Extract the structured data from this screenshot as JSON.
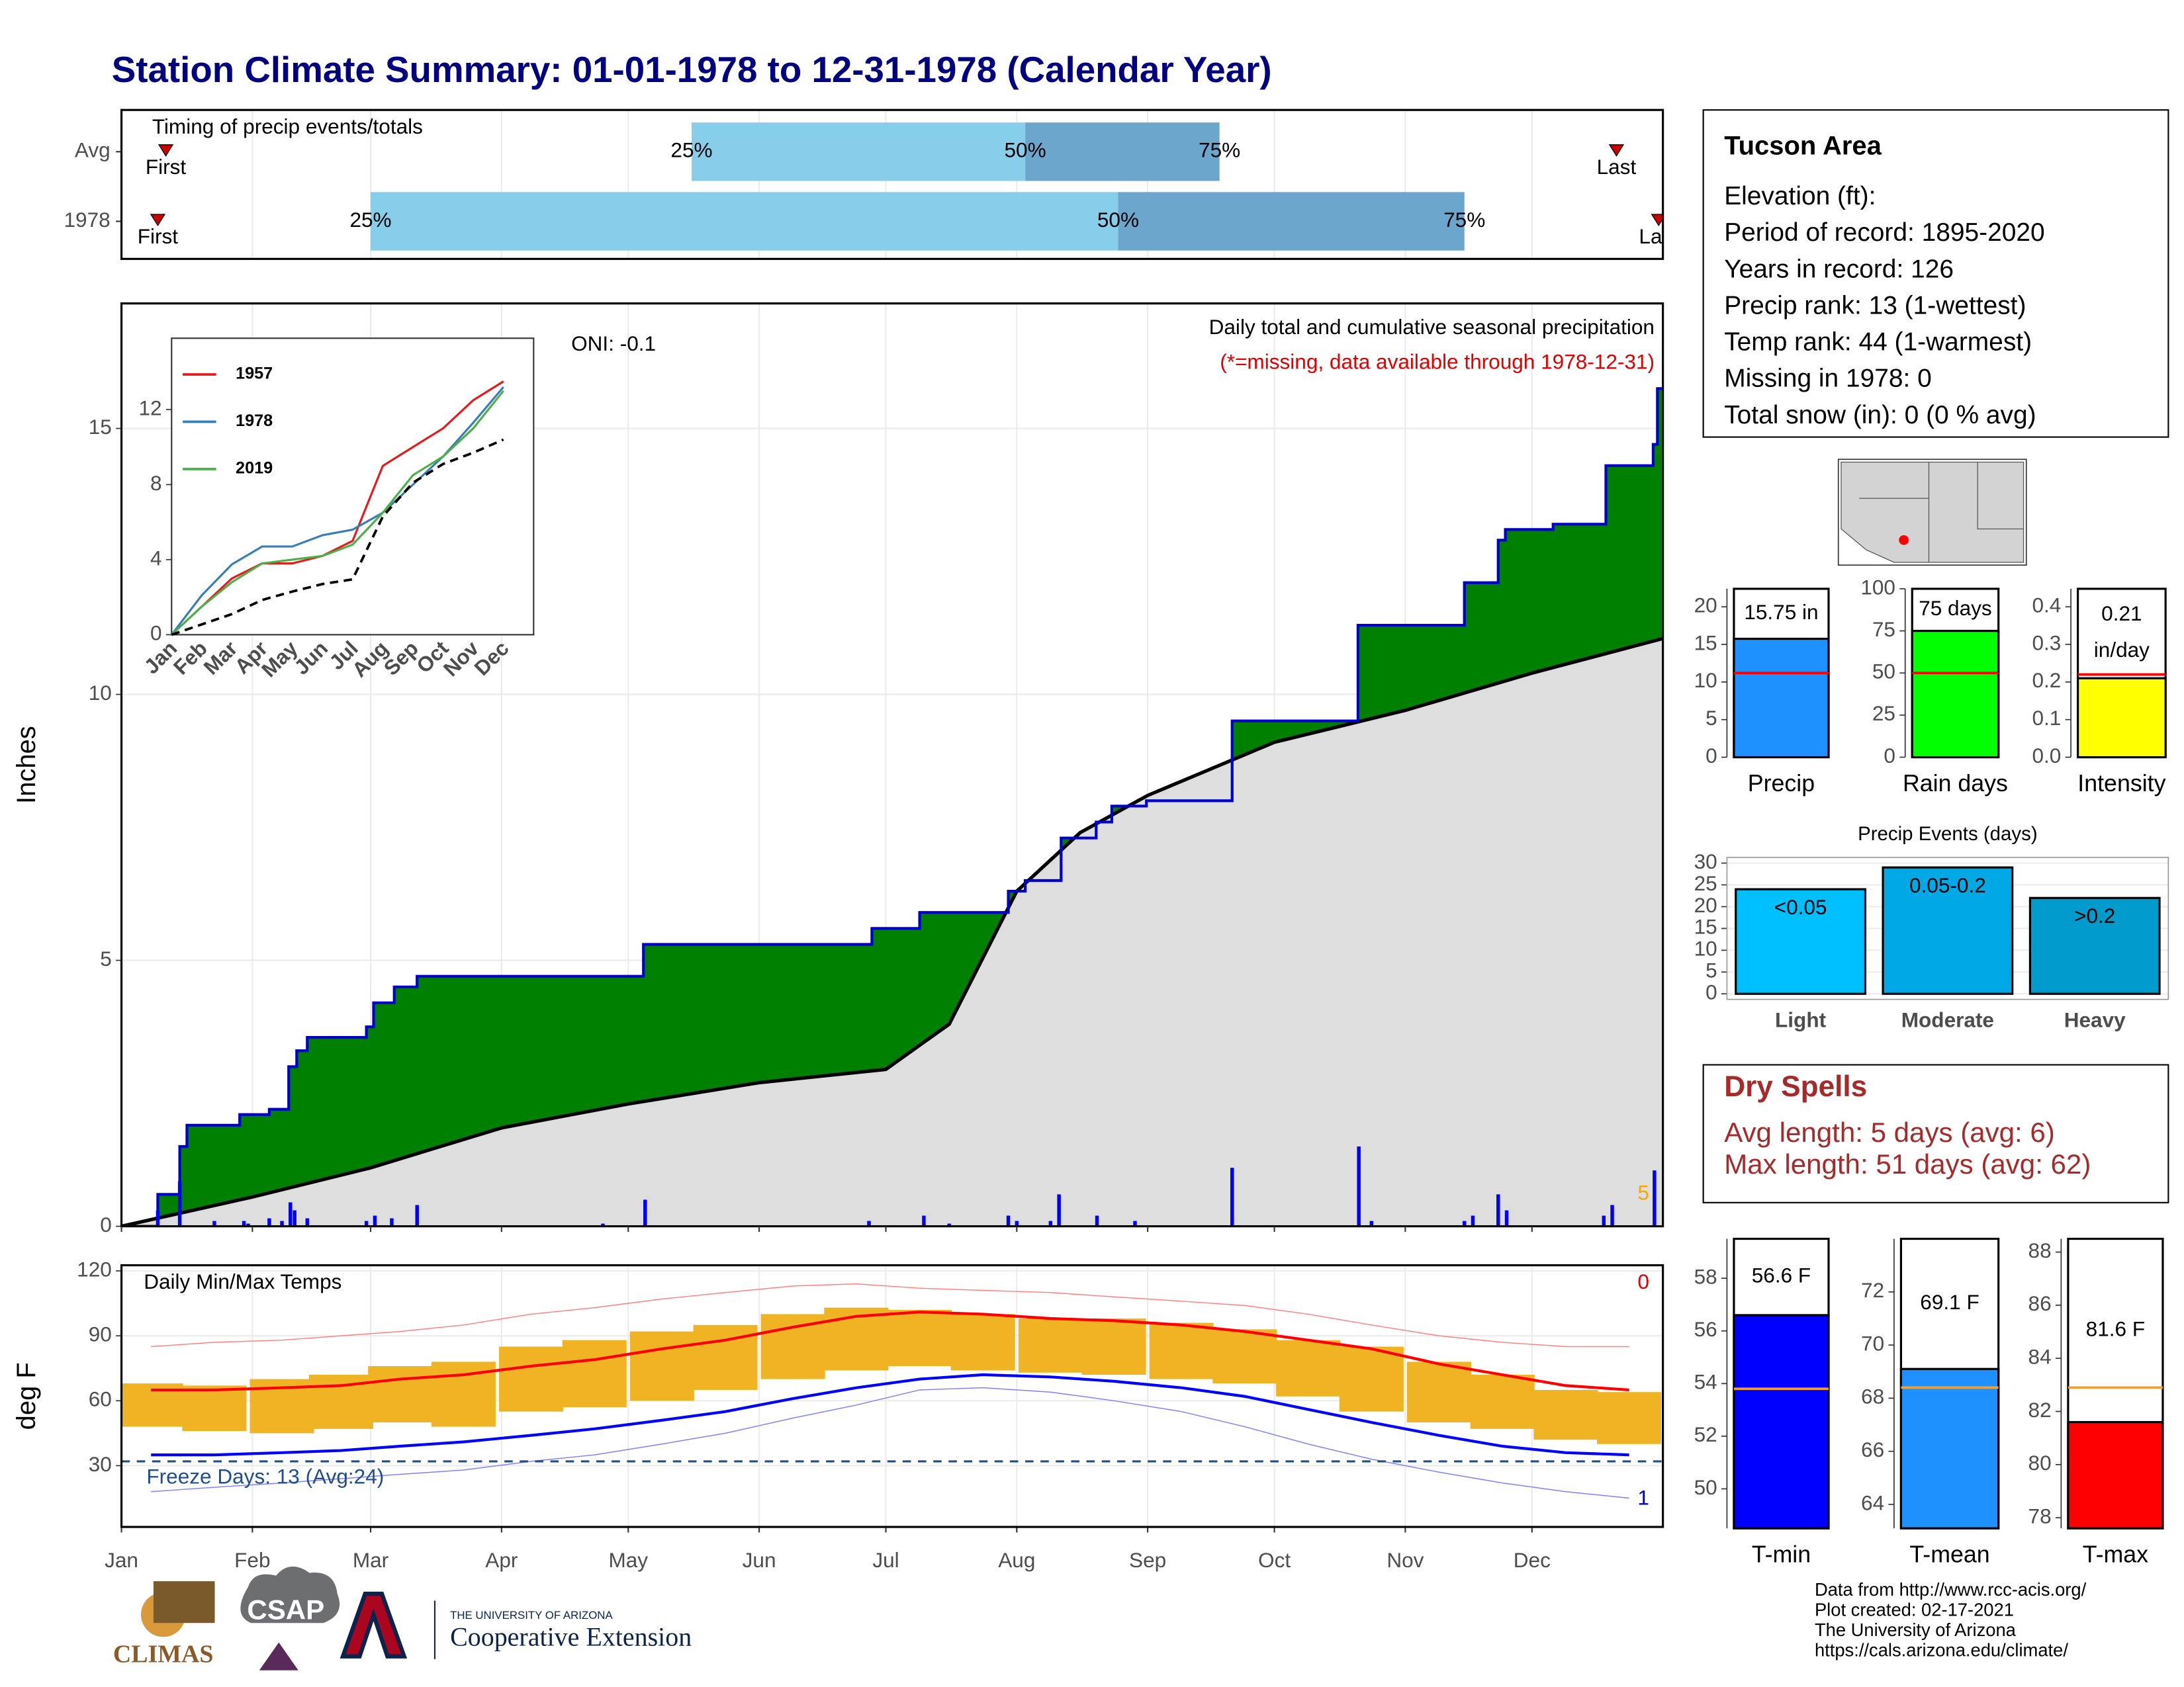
{
  "title": "Station Climate Summary: 01-01-1978 to 12-31-1978 (Calendar Year)",
  "chart_data": [
    {
      "type": "timing",
      "title": "Timing of precip events/totals",
      "xlim": [
        0,
        365
      ],
      "categories": [
        "Avg",
        "1978"
      ],
      "rows": [
        {
          "first": 10.5,
          "q25": 135,
          "q50": 214,
          "q75": 260,
          "last": 354
        },
        {
          "first": 8.6,
          "q25": 59,
          "q50": 236,
          "q75": 318,
          "last": 364
        }
      ],
      "marker_labels": {
        "first": "First",
        "q25": "25%",
        "q50": "50%",
        "q75": "75%",
        "last": "Last"
      },
      "colors": [
        "#87ceeb",
        "#6ca6cd"
      ],
      "marker_color": "#cc0000",
      "grid": true
    },
    {
      "type": "area",
      "title": "Daily total and cumulative seasonal precipitation",
      "subtitle": "(*=missing, data available through 1978-12-31)",
      "annotation": "ONI: -0.1",
      "corner_label": "5",
      "ylabel": "Inches",
      "xlim": [
        0,
        365
      ],
      "ylim": [
        0,
        17.35
      ],
      "yticks": [
        0,
        5,
        10,
        15
      ],
      "grid": true,
      "cumulative": {
        "color": "#008000",
        "line_color": "#0000cd",
        "x": [
          0,
          8.6,
          13.8,
          15.5,
          28,
          35,
          39.6,
          41.5,
          44,
          58,
          59.7,
          64.6,
          70,
          123.6,
          177.7,
          189,
          210,
          214,
          222.5,
          230.8,
          234.5,
          242.7,
          263,
          292.8,
          318,
          326,
          327.7,
          339,
          351.5,
          362.7,
          363.7
        ],
        "values": [
          0,
          0.6,
          1.5,
          1.9,
          2.1,
          2.2,
          3.0,
          3.3,
          3.55,
          3.75,
          4.2,
          4.5,
          4.7,
          5.3,
          5.6,
          5.9,
          6.3,
          6.5,
          7.3,
          7.6,
          7.9,
          8.0,
          9.5,
          11.3,
          12.1,
          12.9,
          13.1,
          13.2,
          14.3,
          14.7,
          15.75
        ]
      },
      "average": {
        "color": "#dedede",
        "line_color": "#000000",
        "x": [
          0,
          31,
          59,
          90,
          120,
          151,
          181,
          196,
          212,
          227,
          243,
          273,
          304,
          334,
          365
        ],
        "values": [
          0,
          0.55,
          1.1,
          1.85,
          2.3,
          2.7,
          2.95,
          3.8,
          6.3,
          7.4,
          8.1,
          9.1,
          9.7,
          10.4,
          11.05
        ]
      },
      "daily": {
        "color": "#0000ff",
        "x": [
          8.6,
          13.8,
          22,
          29,
          30,
          35,
          38,
          40,
          41,
          44,
          58,
          60,
          64,
          70,
          114,
          124,
          177,
          190,
          196,
          210,
          212,
          220,
          222,
          231,
          240,
          263,
          293,
          296,
          318,
          320,
          326,
          328,
          351,
          353,
          363
        ],
        "values": [
          0.3,
          0.85,
          0.1,
          0.1,
          0.05,
          0.15,
          0.1,
          0.45,
          0.3,
          0.15,
          0.1,
          0.2,
          0.15,
          0.4,
          0.05,
          0.5,
          0.1,
          0.2,
          0.05,
          0.2,
          0.1,
          0.1,
          0.6,
          0.2,
          0.1,
          1.1,
          1.5,
          0.1,
          0.1,
          0.2,
          0.6,
          0.3,
          0.2,
          0.4,
          1.05
        ]
      }
    },
    {
      "type": "line",
      "categories": [
        "Jan",
        "Feb",
        "Mar",
        "Apr",
        "May",
        "Jun",
        "Jul",
        "Aug",
        "Sep",
        "Oct",
        "Nov",
        "Dec"
      ],
      "ylim": [
        0,
        15.8
      ],
      "yticks": [
        0,
        4,
        8,
        12
      ],
      "legend": "top-left",
      "series": [
        {
          "name": "1957",
          "color": "#e41a1c",
          "values": [
            0,
            1.5,
            3.0,
            3.8,
            3.8,
            4.2,
            5.0,
            9.0,
            10.0,
            11.0,
            12.5,
            13.5
          ]
        },
        {
          "name": "1978",
          "color": "#377eb8",
          "values": [
            0,
            2.1,
            3.75,
            4.7,
            4.7,
            5.3,
            5.6,
            6.5,
            8.0,
            9.5,
            11.3,
            13.2
          ]
        },
        {
          "name": "2019",
          "color": "#4daf4a",
          "values": [
            0,
            1.5,
            2.8,
            3.8,
            4.0,
            4.2,
            4.8,
            6.5,
            8.5,
            9.5,
            11.0,
            13.0
          ]
        },
        {
          "color": "#000000",
          "dash": true,
          "values": [
            0,
            0.55,
            1.1,
            1.85,
            2.3,
            2.7,
            2.95,
            6.3,
            8.1,
            9.1,
            9.7,
            10.4
          ]
        }
      ]
    },
    {
      "type": "temperature",
      "title": "Daily Min/Max Temps",
      "ylabel": "deg F",
      "annotation": "Freeze Days: 13 (Avg:24)",
      "high_count": 0,
      "low_count": 1,
      "xlim": [
        0,
        365
      ],
      "ylim": [
        1.7,
        122.6
      ],
      "yticks": [
        30,
        60,
        90,
        120
      ],
      "xticks": [
        {
          "value": 0,
          "label": "Jan"
        },
        {
          "value": 31,
          "label": "Feb"
        },
        {
          "value": 59,
          "label": "Mar"
        },
        {
          "value": 90,
          "label": "Apr"
        },
        {
          "value": 120,
          "label": "May"
        },
        {
          "value": 151,
          "label": "Jun"
        },
        {
          "value": 181,
          "label": "Jul"
        },
        {
          "value": 212,
          "label": "Aug"
        },
        {
          "value": 243,
          "label": "Sep"
        },
        {
          "value": 273,
          "label": "Oct"
        },
        {
          "value": 304,
          "label": "Nov"
        },
        {
          "value": 334,
          "label": "Dec"
        }
      ],
      "grid": true,
      "freeze_line": 32,
      "x": [
        7,
        22,
        38,
        52,
        66,
        81,
        97,
        112,
        128,
        143,
        159,
        174,
        189,
        204,
        220,
        235,
        251,
        266,
        281,
        296,
        312,
        327,
        342,
        357
      ],
      "range": {
        "color": "#f0b323",
        "low": [
          48,
          46,
          45,
          47,
          50,
          48,
          55,
          57,
          60,
          65,
          70,
          74,
          76,
          74,
          73,
          72,
          70,
          68,
          62,
          55,
          50,
          47,
          42,
          40
        ],
        "high": [
          68,
          67,
          70,
          72,
          76,
          78,
          85,
          88,
          92,
          95,
          100,
          103,
          102,
          100,
          98,
          98,
          96,
          93,
          88,
          85,
          78,
          72,
          65,
          64
        ]
      },
      "series": [
        {
          "color": "#ff0000",
          "width": 2,
          "values": [
            65,
            65,
            66,
            67,
            70,
            72,
            76,
            79,
            84,
            88,
            94,
            99,
            101,
            100,
            98,
            97,
            95,
            92,
            88,
            84,
            77,
            72,
            67,
            65
          ]
        },
        {
          "color": "#0000ff",
          "width": 2,
          "values": [
            35,
            35,
            36,
            37,
            39,
            41,
            44,
            47,
            51,
            55,
            61,
            66,
            70,
            72,
            71,
            69,
            66,
            62,
            56,
            50,
            44,
            39,
            36,
            35
          ]
        },
        {
          "color": "#ff8080",
          "width": 0.7,
          "values": [
            85,
            87,
            88,
            90,
            92,
            95,
            100,
            103,
            107,
            110,
            113,
            114,
            112,
            111,
            110,
            108,
            106,
            104,
            100,
            95,
            90,
            87,
            85,
            85
          ]
        },
        {
          "color": "#8080ff",
          "width": 0.7,
          "values": [
            18,
            20,
            22,
            24,
            26,
            28,
            32,
            35,
            40,
            45,
            52,
            58,
            65,
            66,
            64,
            60,
            55,
            48,
            40,
            33,
            27,
            22,
            18,
            15
          ]
        }
      ]
    },
    {
      "type": "summary_bar",
      "xlabel": "Precip",
      "values": [
        15.75
      ],
      "value_labels": [
        "15.75 in"
      ],
      "average": 11.2,
      "color": "#1e90ff",
      "average_color": "#ff0000",
      "ylim": [
        0,
        22.4
      ],
      "yticks": [
        0,
        5,
        10,
        15,
        20
      ]
    },
    {
      "type": "summary_bar",
      "xlabel": "Rain days",
      "values": [
        75
      ],
      "value_labels": [
        "75 days"
      ],
      "average": 50,
      "color": "#00ff00",
      "average_color": "#ff0000",
      "ylim": [
        0,
        100
      ],
      "yticks": [
        0,
        25,
        50,
        75,
        100
      ]
    },
    {
      "type": "summary_bar",
      "xlabel": "Intensity",
      "values": [
        0.21
      ],
      "value_labels": [
        "0.21 in/day"
      ],
      "average": 0.22,
      "color": "#ffff00",
      "average_color": "#ff0000",
      "ylim": [
        0,
        0.448
      ],
      "yticks": [
        {
          "value": 0,
          "label": "0.0"
        },
        0.1,
        0.2,
        0.3,
        0.4
      ]
    },
    {
      "type": "bar",
      "title": "Precip Events (days)",
      "categories": [
        "Light",
        "Moderate",
        "Heavy"
      ],
      "values": [
        24,
        29,
        22
      ],
      "bar_labels": [
        "<0.05",
        "0.05-0.2",
        ">0.2"
      ],
      "colors": [
        "#00bfff",
        "#00a9e6",
        "#009acd"
      ],
      "ylim": [
        0,
        31.3
      ],
      "yticks": [
        0,
        5,
        10,
        15,
        20,
        25,
        30
      ],
      "grid": true
    },
    {
      "type": "summary_bar",
      "xlabel": "T-min",
      "values": [
        56.6
      ],
      "value_labels": [
        "56.6 F"
      ],
      "average": 53.8,
      "color": "#0000ff",
      "average_color": "#f0a030",
      "ylim": [
        48.5,
        59.5
      ],
      "yticks": [
        50,
        52,
        54,
        56,
        58
      ]
    },
    {
      "type": "summary_bar",
      "xlabel": "T-mean",
      "values": [
        69.1
      ],
      "value_labels": [
        "69.1 F"
      ],
      "average": 68.4,
      "color": "#1e90ff",
      "average_color": "#f0a030",
      "ylim": [
        63.1,
        74.0
      ],
      "yticks": [
        64,
        66,
        68,
        70,
        72
      ]
    },
    {
      "type": "summary_bar",
      "xlabel": "T-max",
      "values": [
        81.6
      ],
      "value_labels": [
        "81.6 F"
      ],
      "average": 82.9,
      "color": "#ff0000",
      "average_color": "#f0a030",
      "ylim": [
        77.6,
        88.5
      ],
      "yticks": [
        78,
        80,
        82,
        84,
        86,
        88
      ]
    }
  ],
  "info": {
    "title": "Tucson Area",
    "lines": [
      "Elevation (ft):",
      "Period of record: 1895-2020",
      "Years in record: 126",
      "Precip rank: 13 (1-wettest)",
      "Temp rank: 44 (1-warmest)",
      "Missing in 1978: 0",
      "Total snow (in): 0 (0 % avg)"
    ]
  },
  "dry_spells": {
    "title": "Dry Spells",
    "lines": [
      "Avg length: 5 days (avg: 6)",
      "Max length: 51 days (avg: 62)"
    ]
  },
  "footer": [
    "Data from http://www.rcc-acis.org/",
    "Plot created: 02-17-2021",
    "The University of Arizona",
    "https://cals.arizona.edu/climate/"
  ],
  "logos": [
    "CLIMAS",
    "CSAP",
    "THE UNIVERSITY OF ARIZONA",
    "Cooperative Extension"
  ]
}
